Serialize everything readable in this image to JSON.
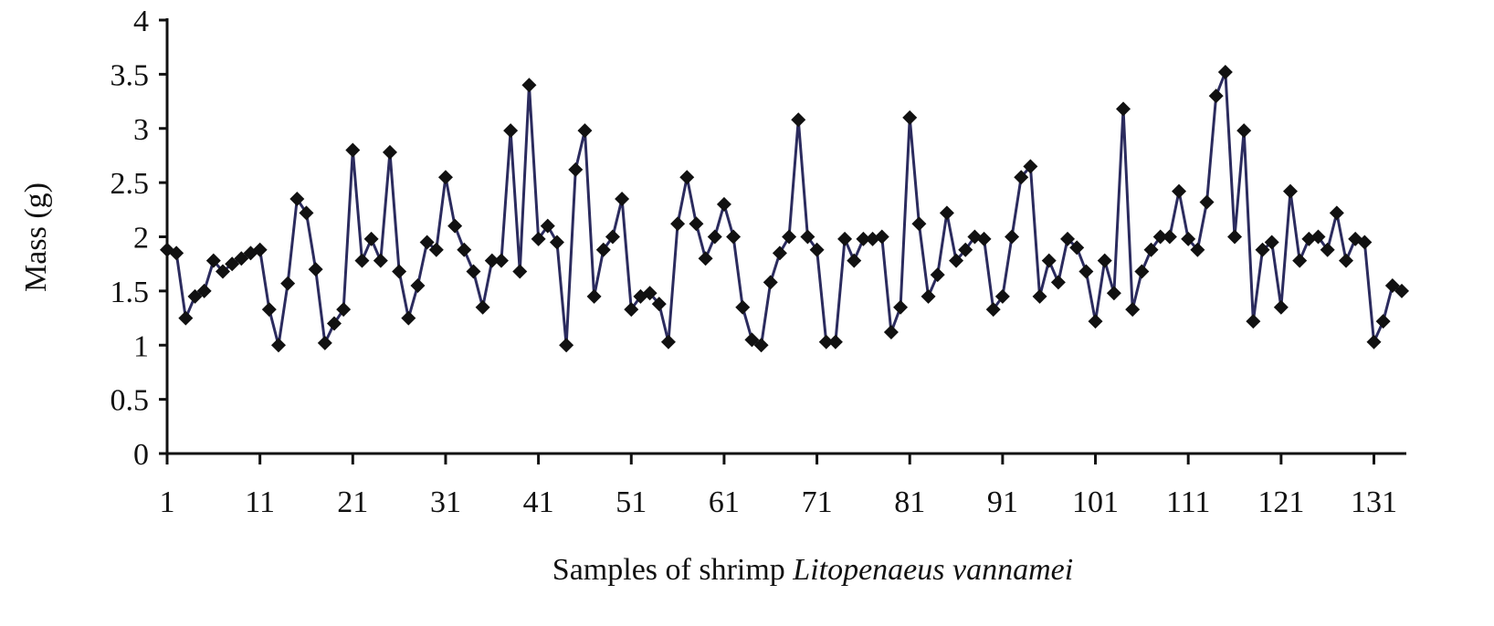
{
  "chart_data": {
    "type": "line",
    "ylabel": "Mass (g)",
    "xlabel": [
      "Samples of shrimp",
      "Litopenaeus vannamei"
    ],
    "x": [
      1,
      2,
      3,
      4,
      5,
      6,
      7,
      8,
      9,
      10,
      11,
      12,
      13,
      14,
      15,
      16,
      17,
      18,
      19,
      20,
      21,
      22,
      23,
      24,
      25,
      26,
      27,
      28,
      29,
      30,
      31,
      32,
      33,
      34,
      35,
      36,
      37,
      38,
      39,
      40,
      41,
      42,
      43,
      44,
      45,
      46,
      47,
      48,
      49,
      50,
      51,
      52,
      53,
      54,
      55,
      56,
      57,
      58,
      59,
      60,
      61,
      62,
      63,
      64,
      65,
      66,
      67,
      68,
      69,
      70,
      71,
      72,
      73,
      74,
      75,
      76,
      77,
      78,
      79,
      80,
      81,
      82,
      83,
      84,
      85,
      86,
      87,
      88,
      89,
      90,
      91,
      92,
      93,
      94,
      95,
      96,
      97,
      98,
      99,
      100,
      101,
      102,
      103,
      104,
      105,
      106,
      107,
      108,
      109,
      110,
      111,
      112,
      113,
      114,
      115,
      116,
      117,
      118,
      119,
      120,
      121,
      122,
      123,
      124,
      125,
      126,
      127,
      128,
      129,
      130,
      131,
      132,
      133,
      134
    ],
    "series": [
      {
        "color": "#2b2b5e",
        "values": [
          1.88,
          1.85,
          1.25,
          1.45,
          1.5,
          1.78,
          1.68,
          1.75,
          1.8,
          1.85,
          1.88,
          1.33,
          1.0,
          1.57,
          2.35,
          2.22,
          1.7,
          1.02,
          1.2,
          1.33,
          2.8,
          1.78,
          1.98,
          1.78,
          2.78,
          1.68,
          1.25,
          1.55,
          1.95,
          1.88,
          2.55,
          2.1,
          1.88,
          1.68,
          1.35,
          1.78,
          1.78,
          2.98,
          1.68,
          3.4,
          1.98,
          2.1,
          1.95,
          1.0,
          2.62,
          2.98,
          1.45,
          1.88,
          2.0,
          2.35,
          1.33,
          1.45,
          1.48,
          1.38,
          1.03,
          2.12,
          2.55,
          2.12,
          1.8,
          2.0,
          2.3,
          2.0,
          1.35,
          1.05,
          1.0,
          1.58,
          1.85,
          2.0,
          3.08,
          2.0,
          1.88,
          1.03,
          1.03,
          1.98,
          1.78,
          1.98,
          1.98,
          2.0,
          1.12,
          1.35,
          3.1,
          2.12,
          1.45,
          1.65,
          2.22,
          1.78,
          1.88,
          2.0,
          1.98,
          1.33,
          1.45,
          2.0,
          2.55,
          2.65,
          1.45,
          1.78,
          1.58,
          1.98,
          1.9,
          1.68,
          1.22,
          1.78,
          1.48,
          3.18,
          1.33,
          1.68,
          1.88,
          2.0,
          2.0,
          2.42,
          1.98,
          1.88,
          2.32,
          3.3,
          3.52,
          2.0,
          2.98,
          1.22,
          1.88,
          1.95,
          1.35,
          2.42,
          1.78,
          1.98,
          2.0,
          1.88,
          2.22,
          1.78,
          1.98,
          1.95,
          1.03,
          1.22,
          1.55,
          1.5
        ]
      }
    ],
    "marker_color": "#111111",
    "xlim": [
      1,
      134
    ],
    "xticks": [
      1,
      11,
      21,
      31,
      41,
      51,
      61,
      71,
      81,
      91,
      101,
      111,
      121,
      131
    ],
    "ylim": [
      0,
      4
    ],
    "yticks": [
      0,
      0.5,
      1,
      1.5,
      2,
      2.5,
      3,
      3.5,
      4
    ]
  }
}
